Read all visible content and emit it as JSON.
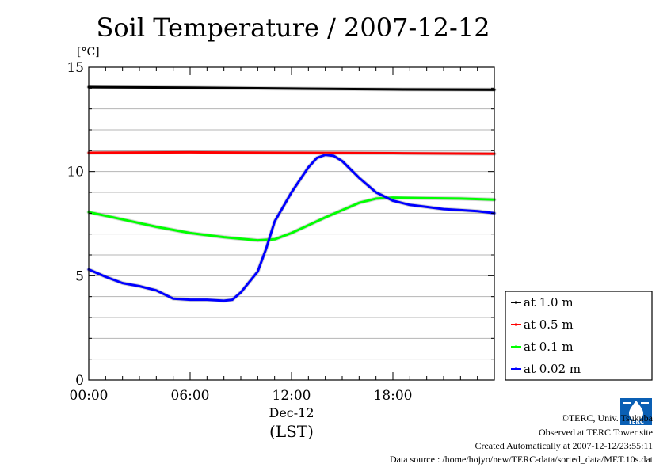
{
  "chart_data": {
    "type": "line",
    "title": "Soil Temperature / 2007-12-12",
    "yunit": "[°C]",
    "ylim": [
      0,
      15
    ],
    "yticks": [
      0,
      5,
      10,
      15
    ],
    "xlim": [
      0,
      24
    ],
    "xticks": [
      {
        "value": 0,
        "label": "00:00"
      },
      {
        "value": 6,
        "label": "06:00"
      },
      {
        "value": 12,
        "label": "12:00"
      },
      {
        "value": 18,
        "label": "18:00"
      }
    ],
    "date_label": "Dec-12",
    "xlabel": "(LST)",
    "grid": true,
    "legend_position": "right",
    "series": [
      {
        "name": "at 1.0 m",
        "color": "#000000",
        "points": [
          [
            0,
            14.05
          ],
          [
            6,
            14.02
          ],
          [
            12,
            13.98
          ],
          [
            18,
            13.94
          ],
          [
            24,
            13.92
          ]
        ]
      },
      {
        "name": "at 0.5 m",
        "color": "#ff0000",
        "points": [
          [
            0,
            10.9
          ],
          [
            6,
            10.92
          ],
          [
            12,
            10.9
          ],
          [
            18,
            10.88
          ],
          [
            24,
            10.85
          ]
        ]
      },
      {
        "name": "at 0.1 m",
        "color": "#00ff00",
        "points": [
          [
            0,
            8.05
          ],
          [
            2,
            7.7
          ],
          [
            4,
            7.35
          ],
          [
            6,
            7.05
          ],
          [
            8,
            6.85
          ],
          [
            10,
            6.7
          ],
          [
            11,
            6.75
          ],
          [
            12,
            7.05
          ],
          [
            14,
            7.8
          ],
          [
            16,
            8.5
          ],
          [
            17,
            8.7
          ],
          [
            18,
            8.75
          ],
          [
            20,
            8.72
          ],
          [
            22,
            8.7
          ],
          [
            24,
            8.65
          ]
        ]
      },
      {
        "name": "at 0.02 m",
        "color": "#0000ff",
        "points": [
          [
            0,
            5.3
          ],
          [
            1,
            4.95
          ],
          [
            2,
            4.65
          ],
          [
            3,
            4.5
          ],
          [
            4,
            4.3
          ],
          [
            5,
            3.9
          ],
          [
            6,
            3.85
          ],
          [
            7,
            3.85
          ],
          [
            8,
            3.8
          ],
          [
            8.5,
            3.85
          ],
          [
            9,
            4.2
          ],
          [
            10,
            5.2
          ],
          [
            10.5,
            6.3
          ],
          [
            11,
            7.6
          ],
          [
            12,
            9.0
          ],
          [
            13,
            10.2
          ],
          [
            13.5,
            10.65
          ],
          [
            14,
            10.8
          ],
          [
            14.5,
            10.75
          ],
          [
            15,
            10.5
          ],
          [
            16,
            9.7
          ],
          [
            17,
            9.0
          ],
          [
            18,
            8.6
          ],
          [
            19,
            8.4
          ],
          [
            20,
            8.3
          ],
          [
            21,
            8.2
          ],
          [
            22,
            8.15
          ],
          [
            23,
            8.1
          ],
          [
            24,
            8.0
          ]
        ]
      }
    ]
  },
  "footer": {
    "copyright": "©TERC, Univ. Tsukuba",
    "observed": "Observed at TERC Tower site",
    "created": "Created Automatically at 2007-12-12/23:55:11",
    "source": "Data source : /home/hojyo/new/TERC-data/sorted_data/MET.10s.dat",
    "logo_text": "TERC"
  }
}
